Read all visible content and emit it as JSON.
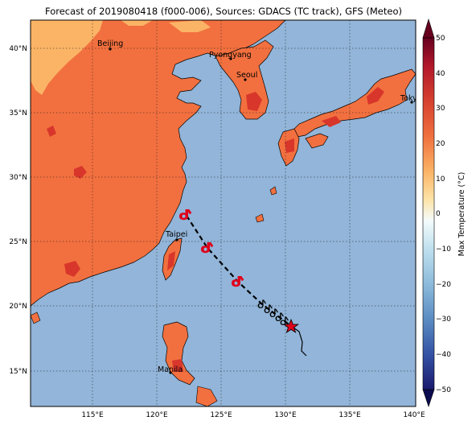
{
  "title": "Forecast of 2019080418 (f000-006), Sources: GDACS (TC track), GFS (Meteo)",
  "lat_ticks": [
    "15°N",
    "20°N",
    "25°N",
    "30°N",
    "35°N",
    "40°N"
  ],
  "lon_ticks": [
    "115°E",
    "120°E",
    "125°E",
    "130°E",
    "135°E",
    "140°E"
  ],
  "cities": [
    {
      "name": "Beijing"
    },
    {
      "name": "Pyongyang"
    },
    {
      "name": "Seoul"
    },
    {
      "name": "Tokyo"
    },
    {
      "name": "Taipei"
    },
    {
      "name": "Manila"
    }
  ],
  "colorbar": {
    "label": "Max Temperature (°C)",
    "ticks": [
      "50",
      "40",
      "30",
      "20",
      "10",
      "0",
      "−10",
      "−20",
      "−30",
      "−40",
      "−50"
    ],
    "colors": [
      "#8b0a26",
      "#c2182b",
      "#e04430",
      "#f0703f",
      "#fbb466",
      "#fde2a0",
      "#eaf5f9",
      "#b6dcec",
      "#7fb3d6",
      "#4e7fb9",
      "#2f56a2",
      "#222f8f"
    ]
  },
  "colors": {
    "ocean": "#92b5d9",
    "land_warm": "#f2703f",
    "land_hot": "#d8362b",
    "land_mild": "#fbb466",
    "track": "#000000",
    "storm_symbol": "#e0001b"
  },
  "legend_symbols": [
    "cyclone-forecast-icon",
    "cyclone-observed-icon",
    "current-position-star-icon"
  ]
}
